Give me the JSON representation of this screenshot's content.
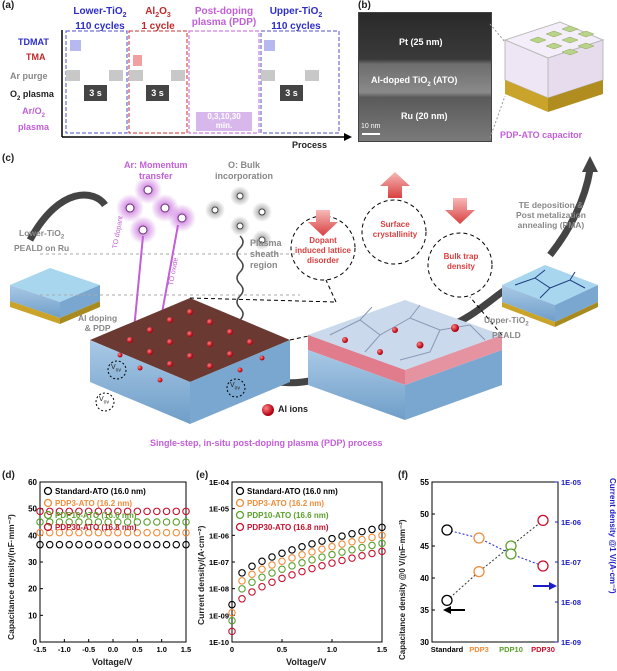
{
  "panels": {
    "a": {
      "label": "(a)",
      "stage_lower": {
        "l1": "Lower-TiO",
        "sub": "2",
        "l2": "110 cycles"
      },
      "stage_al": {
        "l1": "Al",
        "sub1": "2",
        "mid": "O",
        "sub2": "3",
        "l2": "1 cycle"
      },
      "stage_pdp": {
        "l1": "Post-doping",
        "l2": "plasma (PDP)"
      },
      "stage_upper": {
        "l1": "Upper-TiO",
        "sub": "2",
        "l2": "110 cycles"
      },
      "rows": {
        "tdmat": "TDMAT",
        "tma": "TMA",
        "ar": "Ar purge",
        "o2": "O",
        "o2_sub": "2",
        "o2_tail": " plasma",
        "aro2_l1": "Ar/O",
        "aro2_sub": "2",
        "aro2_l2": "plasma"
      },
      "time1": "3 s",
      "time2": "3 s",
      "time3": "3 s",
      "pdp_time_l1": "0,3,10,30",
      "pdp_time_l2": "min.",
      "axis": "Process"
    },
    "b": {
      "label": "(b)",
      "pt": "Pt (25 nm)",
      "ato_l": "Al-doped TiO",
      "ato_sub": "2",
      "ato_r": " (ATO)",
      "ru": "Ru (20 nm)",
      "scale": "10 nm",
      "cap": "PDP-ATO capacitor"
    },
    "c": {
      "label": "(c)",
      "ar_l1": "Ar: Momentum",
      "ar_l2": "transfer",
      "o_l1": "O: Bulk",
      "o_l2": "incorporation",
      "to_dopant": "TO dopant",
      "to_oxide": "TO oxide",
      "sheath_l1": "Plasma",
      "sheath_l2": "sheath",
      "sheath_l3": "region",
      "lower_l1": "Lower-TiO",
      "lower_sub": "2",
      "lower_l2": "PEALD on Ru",
      "aldop_l1": "Al doping",
      "aldop_l2": "& PDP",
      "dopant_l1": "Dopant",
      "dopant_l2": "induced lattice",
      "dopant_l3": "disorder",
      "surf_l1": "Surface",
      "surf_l2": "crystallinity",
      "bulk_l1": "Bulk trap",
      "bulk_l2": "density",
      "te_l1": "TE deposition &",
      "te_l2": "Post metalization",
      "te_l3": "annealing (PMA)",
      "upper_l1": "Upper-TiO",
      "upper_sub": "2",
      "upper_l2": "PEALD",
      "vov": "V",
      "vov_sub": "ov",
      "al_ions": "Al ions",
      "caption": "Single-step, in-situ post-doping plasma (PDP) process"
    },
    "d": {
      "label": "(d)",
      "ylabel": "Capacitance density/(nF·mm⁻²)",
      "xlabel": "Voltage/V"
    },
    "e": {
      "label": "(e)",
      "ylabel": "Current density/(A·cm⁻²)",
      "xlabel": "Voltage/V"
    },
    "f": {
      "label": "(f)",
      "ylabel_left": "Capacitance density @0 V/(nF·mm⁻²)",
      "ylabel_right": "Current density @1 V/(A·cm⁻²)"
    }
  },
  "legend": [
    {
      "name": "Standard-ATO (16.0 nm)",
      "color": "#000000"
    },
    {
      "name": "PDP3-ATO (16.2 nm)",
      "color": "#f08c3a"
    },
    {
      "name": "PDP10-ATO (16.6 nm)",
      "color": "#5aa02c"
    },
    {
      "name": "PDP30-ATO (16.8 nm)",
      "color": "#c8102e"
    }
  ],
  "colors": {
    "tdmat": "#b8b8f0",
    "tma": "#f0a0a0",
    "ar": "#c8c8c8",
    "pdp": "#d8b8ec",
    "purple": "#c25fd8",
    "blue": "#1c1cc8"
  },
  "chart_data": [
    {
      "type": "scatter",
      "title": "(d)",
      "xlabel": "Voltage/V",
      "ylabel": "Capacitance density/(nF·mm⁻²)",
      "xlim": [
        -1.5,
        1.5
      ],
      "ylim": [
        0,
        60
      ],
      "xticks": [
        "-1.5",
        "-1.0",
        "-0.5",
        "0.0",
        "0.5",
        "1.0",
        "1.5"
      ],
      "yticks": [
        "0",
        "10",
        "20",
        "30",
        "40",
        "50",
        "60"
      ],
      "x": [
        -1.5,
        -1.3,
        -1.1,
        -0.9,
        -0.7,
        -0.5,
        -0.3,
        -0.1,
        0.1,
        0.3,
        0.5,
        0.7,
        0.9,
        1.1,
        1.3,
        1.5
      ],
      "series": [
        {
          "name": "Standard-ATO (16.0 nm)",
          "color": "#000000",
          "value": 36.5
        },
        {
          "name": "PDP3-ATO (16.2 nm)",
          "color": "#f08c3a",
          "value": 41.0
        },
        {
          "name": "PDP10-ATO (16.6 nm)",
          "color": "#5aa02c",
          "value": 45.0
        },
        {
          "name": "PDP30-ATO (16.8 nm)",
          "color": "#c8102e",
          "value": 49.0
        }
      ]
    },
    {
      "type": "scatter",
      "title": "(e)",
      "xlabel": "Voltage/V",
      "ylabel": "Current density/(A·cm⁻²)",
      "yscale": "log",
      "xlim": [
        0,
        1.5
      ],
      "ylim_exp": [
        -10,
        -4
      ],
      "xticks": [
        "0",
        "0.5",
        "1.0",
        "1.5"
      ],
      "yticks": [
        "1E-10",
        "1E-09",
        "1E-08",
        "1E-07",
        "1E-06",
        "1E-05",
        "1E-04"
      ],
      "series": [
        {
          "name": "Standard-ATO (16.0 nm)",
          "color": "#000000",
          "start_exp": -8.0,
          "end_exp": -5.7
        },
        {
          "name": "PDP3-ATO (16.2 nm)",
          "color": "#f08c3a",
          "start_exp": -8.3,
          "end_exp": -6.0
        },
        {
          "name": "PDP10-ATO (16.6 nm)",
          "color": "#5aa02c",
          "start_exp": -8.6,
          "end_exp": -6.3
        },
        {
          "name": "PDP30-ATO (16.8 nm)",
          "color": "#c8102e",
          "start_exp": -9.0,
          "end_exp": -6.6
        }
      ]
    },
    {
      "type": "line",
      "title": "(f)",
      "categories": [
        "Standard",
        "PDP3",
        "PDP10",
        "PDP30"
      ],
      "category_colors": [
        "#000000",
        "#f08c3a",
        "#5aa02c",
        "#c8102e"
      ],
      "ylim_left": [
        30,
        55
      ],
      "yticks_left": [
        "30",
        "35",
        "40",
        "45",
        "50",
        "55"
      ],
      "ylim_right_exp": [
        -9,
        -5
      ],
      "yticks_right": [
        "1E-09",
        "1E-08",
        "1E-07",
        "1E-06",
        "1E-05"
      ],
      "capacitance": [
        36.5,
        41.0,
        45.0,
        49.0
      ],
      "current_exp": [
        -6.2,
        -6.4,
        -6.8,
        -7.1
      ]
    }
  ]
}
